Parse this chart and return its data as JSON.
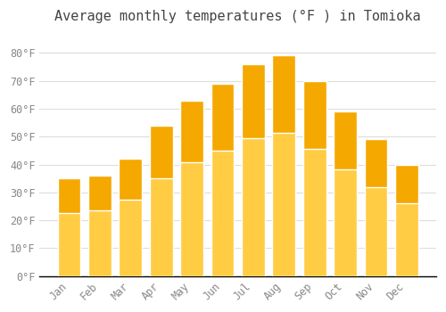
{
  "title": "Average monthly temperatures (°F ) in Tomioka",
  "months": [
    "Jan",
    "Feb",
    "Mar",
    "Apr",
    "May",
    "Jun",
    "Jul",
    "Aug",
    "Sep",
    "Oct",
    "Nov",
    "Dec"
  ],
  "values": [
    35,
    36,
    42,
    54,
    63,
    69,
    76,
    79,
    70,
    59,
    49,
    40
  ],
  "bar_color_top": "#F5A800",
  "bar_color_bottom": "#FFCC44",
  "bar_edge_color": "#FFFFFF",
  "background_color": "#FFFFFF",
  "plot_bg_color": "#FFFFFF",
  "grid_color": "#DDDDDD",
  "tick_label_color": "#888888",
  "title_color": "#444444",
  "axis_line_color": "#000000",
  "ylim": [
    0,
    88
  ],
  "yticks": [
    0,
    10,
    20,
    30,
    40,
    50,
    60,
    70,
    80
  ],
  "ytick_labels": [
    "0°F",
    "10°F",
    "20°F",
    "30°F",
    "40°F",
    "50°F",
    "60°F",
    "70°F",
    "80°F"
  ],
  "title_fontsize": 11,
  "tick_fontsize": 8.5
}
